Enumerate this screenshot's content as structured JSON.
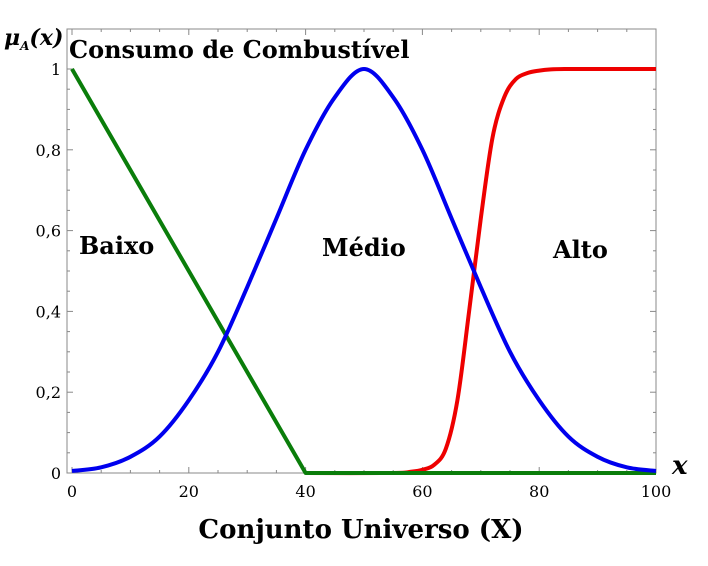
{
  "chart_data": {
    "type": "line",
    "title": "Consumo de Combustível",
    "xlabel": "Conjunto Universo (X)",
    "ylabel_main": "μ",
    "ylabel_sub": "A",
    "ylabel_arg": "(x)",
    "x_axis_symbol": "x",
    "xlim": [
      0,
      100
    ],
    "ylim": [
      0,
      1
    ],
    "x_ticks": [
      0,
      20,
      40,
      60,
      80,
      100
    ],
    "x_tick_labels": [
      "0",
      "20",
      "40",
      "60",
      "80",
      "100"
    ],
    "y_ticks": [
      0,
      0.2,
      0.4,
      0.6,
      0.8,
      1
    ],
    "y_tick_labels": [
      "0",
      "0,2",
      "0,4",
      "0,6",
      "0,8",
      "1"
    ],
    "grid": false,
    "series": [
      {
        "name": "Baixo",
        "color": "#0a7d0a",
        "x": [
          0,
          40,
          100
        ],
        "y": [
          1,
          0,
          0
        ]
      },
      {
        "name": "Médio",
        "color": "#0000ee",
        "x": [
          0,
          5,
          10,
          15,
          20,
          25,
          30,
          35,
          40,
          45,
          50,
          55,
          60,
          65,
          70,
          75,
          80,
          85,
          90,
          95,
          100
        ],
        "y": [
          0.005,
          0.014,
          0.04,
          0.09,
          0.18,
          0.3,
          0.46,
          0.63,
          0.8,
          0.93,
          1.0,
          0.93,
          0.8,
          0.63,
          0.46,
          0.3,
          0.18,
          0.09,
          0.04,
          0.014,
          0.005
        ]
      },
      {
        "name": "Alto",
        "color": "#ee0000",
        "x": [
          40,
          55,
          58,
          60,
          62,
          64,
          66,
          68,
          70,
          72,
          74,
          76,
          78,
          80,
          82,
          85,
          90,
          100
        ],
        "y": [
          0,
          0,
          0.003,
          0.008,
          0.02,
          0.06,
          0.18,
          0.4,
          0.63,
          0.83,
          0.93,
          0.975,
          0.99,
          0.996,
          0.999,
          1,
          1,
          1
        ]
      }
    ]
  }
}
